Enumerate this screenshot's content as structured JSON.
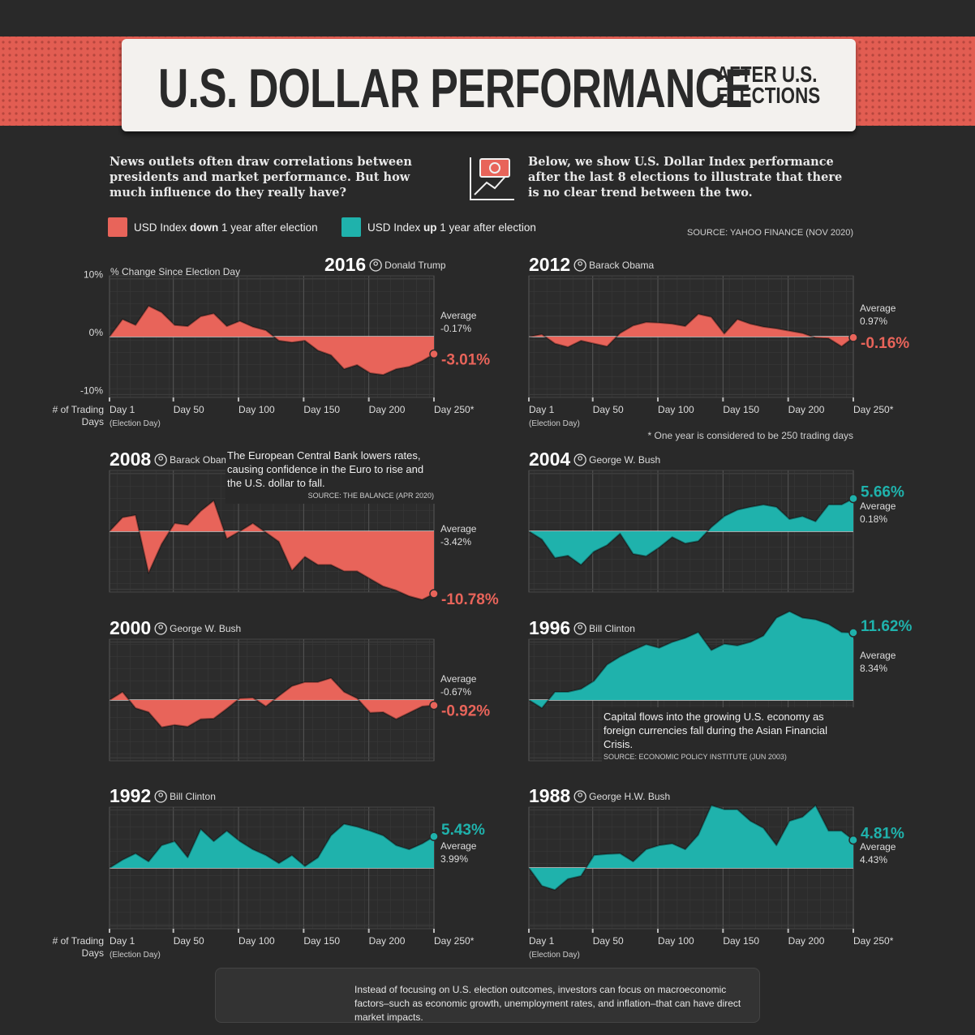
{
  "header": {
    "title": "U.S. DOLLAR PERFORMANCE",
    "subtitle_lines": [
      "AFTER U.S.",
      "ELECTIONS"
    ]
  },
  "intro": {
    "left": "News outlets often draw correlations between presidents and market performance. But how much influence do they really have?",
    "right": "Below, we show U.S. Dollar Index performance after the last 8 elections to illustrate that there is no clear trend between the two."
  },
  "legend": [
    {
      "color": "#e8645a",
      "text_before": "USD Index ",
      "emphasis": "down",
      "text_after": " 1 year after election"
    },
    {
      "color": "#1fb2ac",
      "text_before": "USD Index ",
      "emphasis": "up",
      "text_after": " 1 year after election"
    }
  ],
  "source": "SOURCE: YAHOO FINANCE (NOV 2020)",
  "footnote": "* One year is considered to be 250 trading days",
  "footer": "Instead of focusing on U.S. election outcomes, investors can focus on macroeconomic factors–such as economic growth, unemployment rates, and inflation–that can have direct market impacts.",
  "chart_data": [
    {
      "type": "area",
      "title": "2016",
      "subtitle": "Donald Trump",
      "color": "#e8645a",
      "ylabel": "% Change Since Election Day",
      "xlabel": "# of Trading Days",
      "xtick_note": "(Election Day)",
      "x": [
        1,
        11,
        21,
        31,
        41,
        51,
        61,
        71,
        81,
        91,
        101,
        111,
        121,
        131,
        141,
        151,
        161,
        171,
        181,
        191,
        201,
        211,
        221,
        231,
        241,
        250
      ],
      "values": [
        0,
        3,
        2,
        5.3,
        4.2,
        2,
        1.8,
        3.5,
        4,
        1.8,
        2.7,
        1.7,
        1.1,
        -0.7,
        -1,
        -0.7,
        -2.4,
        -3.2,
        -5.6,
        -4.9,
        -6.3,
        -6.6,
        -5.6,
        -5.2,
        -4.2,
        -3.01
      ],
      "value_labels": [
        null,
        null,
        null,
        null,
        null,
        null,
        null,
        null,
        null,
        null,
        null,
        null,
        null,
        null,
        null,
        null,
        null,
        null,
        null,
        null,
        null,
        null,
        null,
        null,
        null,
        "-3.01%"
      ],
      "average_label": "Average",
      "average": "-0.17%",
      "xlim": [
        1,
        250
      ],
      "ylim": [
        -10.5,
        10.5
      ],
      "xticks": [
        {
          "value": 1,
          "label": "Day 1"
        },
        {
          "value": 50,
          "label": "Day 50"
        },
        {
          "value": 100,
          "label": "Day 100"
        },
        {
          "value": 150,
          "label": "Day 150"
        },
        {
          "value": 200,
          "label": "Day 200"
        },
        {
          "value": 250,
          "label": "Day 250*"
        }
      ],
      "yticks": [
        {
          "value": 10,
          "label": "10%"
        },
        {
          "value": 0,
          "label": "0%"
        },
        {
          "value": -10,
          "label": "-10%"
        }
      ],
      "grid": true
    },
    {
      "type": "area",
      "title": "2012",
      "subtitle": "Barack Obama",
      "color": "#e8645a",
      "xtick_note": "(Election Day)",
      "x": [
        1,
        11,
        21,
        31,
        41,
        51,
        61,
        71,
        81,
        91,
        101,
        111,
        121,
        131,
        141,
        151,
        161,
        171,
        181,
        191,
        201,
        211,
        221,
        231,
        241,
        250
      ],
      "values": [
        0,
        0.4,
        -1.2,
        -1.8,
        -0.7,
        -1.2,
        -1.7,
        0.6,
        1.9,
        2.5,
        2.4,
        2.2,
        1.8,
        3.9,
        3.4,
        0.5,
        3,
        2.2,
        1.7,
        1.4,
        1.0,
        0.6,
        -0.2,
        -0.3,
        -1.7,
        -0.16
      ],
      "value_labels": [
        null,
        null,
        null,
        null,
        null,
        null,
        null,
        null,
        null,
        null,
        null,
        null,
        null,
        null,
        null,
        null,
        null,
        null,
        null,
        null,
        null,
        null,
        null,
        null,
        null,
        "-0.16%"
      ],
      "average_label": "Average",
      "average": "0.97%",
      "xlim": [
        1,
        250
      ],
      "ylim": [
        -10.5,
        10.5
      ],
      "xticks": [
        {
          "value": 1,
          "label": "Day 1"
        },
        {
          "value": 50,
          "label": "Day 50"
        },
        {
          "value": 100,
          "label": "Day 100"
        },
        {
          "value": 150,
          "label": "Day 150"
        },
        {
          "value": 200,
          "label": "Day 200"
        },
        {
          "value": 250,
          "label": "Day 250*"
        }
      ],
      "yticks": [
        -10,
        0,
        10
      ],
      "grid": true
    },
    {
      "type": "area",
      "title": "2008",
      "subtitle": "Barack Obama",
      "color": "#e8645a",
      "annotation": "The European Central Bank lowers rates, causing confidence in the Euro to rise and the U.S. dollar to fall.",
      "annotation_source": "SOURCE: THE BALANCE (APR 2020)",
      "x": [
        1,
        11,
        21,
        31,
        41,
        51,
        61,
        71,
        81,
        91,
        101,
        111,
        121,
        131,
        141,
        151,
        161,
        171,
        181,
        191,
        201,
        211,
        221,
        231,
        241,
        250
      ],
      "values": [
        0,
        2.4,
        2.8,
        -7.2,
        -2.2,
        1.4,
        1.1,
        3.5,
        5.3,
        -1.3,
        0,
        1.4,
        -0.2,
        -1.8,
        -6.8,
        -4.4,
        -5.8,
        -5.8,
        -6.9,
        -6.9,
        -8.2,
        -9.5,
        -10.2,
        -11.2,
        -11.8,
        -10.78
      ],
      "value_labels": [
        null,
        null,
        null,
        null,
        null,
        null,
        null,
        null,
        null,
        null,
        null,
        null,
        null,
        null,
        null,
        null,
        null,
        null,
        null,
        null,
        null,
        null,
        null,
        null,
        null,
        "-10.78%"
      ],
      "average_label": "Average",
      "average": "-3.42%",
      "xlim": [
        1,
        250
      ],
      "ylim": [
        -10.5,
        10.5
      ],
      "xticks": [
        1,
        50,
        100,
        150,
        200,
        250
      ],
      "yticks": [
        -10,
        0,
        10
      ],
      "grid": true
    },
    {
      "type": "area",
      "title": "2004",
      "subtitle": "George W. Bush",
      "color": "#1fb2ac",
      "x": [
        1,
        11,
        21,
        31,
        41,
        51,
        61,
        71,
        81,
        91,
        101,
        111,
        121,
        131,
        141,
        151,
        161,
        171,
        181,
        191,
        201,
        211,
        221,
        231,
        241,
        250
      ],
      "values": [
        0,
        -1.4,
        -4.6,
        -4.2,
        -5.8,
        -3.5,
        -2.4,
        -0.4,
        -3.9,
        -4.3,
        -2.8,
        -1,
        -2.1,
        -1.7,
        0.7,
        2.6,
        3.7,
        4.2,
        4.6,
        4.2,
        2.1,
        2.6,
        1.7,
        4.6,
        4.6,
        5.66
      ],
      "value_labels": [
        null,
        null,
        null,
        null,
        null,
        null,
        null,
        null,
        null,
        null,
        null,
        null,
        null,
        null,
        null,
        null,
        null,
        null,
        null,
        null,
        null,
        null,
        null,
        null,
        null,
        "5.66%"
      ],
      "average_label": "Average",
      "average": "0.18%",
      "xlim": [
        1,
        250
      ],
      "ylim": [
        -10.5,
        10.5
      ],
      "xticks": [
        1,
        50,
        100,
        150,
        200,
        250
      ],
      "yticks": [
        -10,
        0,
        10
      ],
      "grid": true
    },
    {
      "type": "area",
      "title": "2000",
      "subtitle": "George W. Bush",
      "color": "#e8645a",
      "x": [
        1,
        11,
        21,
        31,
        41,
        51,
        61,
        71,
        81,
        91,
        101,
        111,
        121,
        131,
        141,
        151,
        161,
        171,
        181,
        191,
        201,
        211,
        221,
        231,
        241,
        250
      ],
      "values": [
        0,
        1.4,
        -1.4,
        -2.1,
        -4.7,
        -4.3,
        -4.6,
        -3.3,
        -3.2,
        -1.5,
        0.3,
        0.4,
        -1.1,
        0.7,
        2.4,
        3.1,
        3.1,
        3.8,
        1.4,
        0.3,
        -2.2,
        -2.1,
        -3.3,
        -2.2,
        -1.1,
        -0.92
      ],
      "value_labels": [
        null,
        null,
        null,
        null,
        null,
        null,
        null,
        null,
        null,
        null,
        null,
        null,
        null,
        null,
        null,
        null,
        null,
        null,
        null,
        null,
        null,
        null,
        null,
        null,
        null,
        "-0.92%"
      ],
      "average_label": "Average",
      "average": "-0.67%",
      "xlim": [
        1,
        250
      ],
      "ylim": [
        -10.5,
        10.5
      ],
      "xticks": [
        1,
        50,
        100,
        150,
        200,
        250
      ],
      "yticks": [
        -10,
        0,
        10
      ],
      "grid": true
    },
    {
      "type": "area",
      "title": "1996",
      "subtitle": "Bill Clinton",
      "color": "#1fb2ac",
      "annotation": "Capital flows into the growing U.S. economy as foreign currencies fall during the Asian Financial Crisis.",
      "annotation_source": "SOURCE: ECONOMIC POLICY INSTITUTE (JUN 2003)",
      "x": [
        1,
        11,
        21,
        31,
        41,
        51,
        61,
        71,
        81,
        91,
        101,
        111,
        121,
        131,
        141,
        151,
        161,
        171,
        181,
        191,
        201,
        211,
        221,
        231,
        241,
        250
      ],
      "values": [
        0,
        -1.4,
        1.4,
        1.4,
        1.9,
        3.3,
        6.1,
        7.5,
        8.6,
        9.6,
        9,
        10,
        10.7,
        11.7,
        8.6,
        9.7,
        9.4,
        10,
        11.1,
        14.2,
        15.3,
        14.2,
        13.9,
        13.1,
        11.7,
        11.62
      ],
      "value_labels": [
        null,
        null,
        null,
        null,
        null,
        null,
        null,
        null,
        null,
        null,
        null,
        null,
        null,
        null,
        null,
        null,
        null,
        null,
        null,
        null,
        null,
        null,
        null,
        null,
        null,
        "11.62%"
      ],
      "average_label": "Average",
      "average": "8.34%",
      "xlim": [
        1,
        250
      ],
      "ylim": [
        -10.5,
        10.5
      ],
      "xticks": [
        1,
        50,
        100,
        150,
        200,
        250
      ],
      "yticks": [
        -10,
        0,
        10
      ],
      "grid": true
    },
    {
      "type": "area",
      "title": "1992",
      "subtitle": "Bill Clinton",
      "color": "#1fb2ac",
      "xlabel": "# of Trading Days",
      "xtick_note": "(Election Day)",
      "x": [
        1,
        11,
        21,
        31,
        41,
        51,
        61,
        71,
        81,
        91,
        101,
        111,
        121,
        131,
        141,
        151,
        161,
        171,
        181,
        191,
        201,
        211,
        221,
        231,
        241,
        250
      ],
      "values": [
        0,
        1.4,
        2.5,
        1.1,
        3.9,
        4.6,
        1.8,
        6.7,
        4.6,
        6.4,
        4.6,
        3.2,
        2.2,
        0.8,
        2.2,
        0.3,
        1.8,
        5.6,
        7.6,
        7.1,
        6.4,
        5.6,
        3.9,
        3.2,
        4.2,
        5.43
      ],
      "value_labels": [
        null,
        null,
        null,
        null,
        null,
        null,
        null,
        null,
        null,
        null,
        null,
        null,
        null,
        null,
        null,
        null,
        null,
        null,
        null,
        null,
        null,
        null,
        null,
        null,
        null,
        "5.43%"
      ],
      "average_label": "Average",
      "average": "3.99%",
      "xlim": [
        1,
        250
      ],
      "ylim": [
        -10.5,
        10.5
      ],
      "xticks": [
        {
          "value": 1,
          "label": "Day 1"
        },
        {
          "value": 50,
          "label": "Day 50"
        },
        {
          "value": 100,
          "label": "Day 100"
        },
        {
          "value": 150,
          "label": "Day 150"
        },
        {
          "value": 200,
          "label": "Day 200"
        },
        {
          "value": 250,
          "label": "Day 250*"
        }
      ],
      "yticks": [
        -10,
        0,
        10
      ],
      "grid": true
    },
    {
      "type": "area",
      "title": "1988",
      "subtitle": "George H.W. Bush",
      "color": "#1fb2ac",
      "xtick_note": "(Election Day)",
      "x": [
        1,
        11,
        21,
        31,
        41,
        51,
        61,
        71,
        81,
        91,
        101,
        111,
        121,
        131,
        141,
        151,
        161,
        171,
        181,
        191,
        201,
        211,
        221,
        231,
        241,
        250
      ],
      "values": [
        0,
        -3.1,
        -3.8,
        -1.9,
        -1.4,
        2.2,
        2.4,
        2.5,
        1.1,
        3.2,
        3.9,
        4.2,
        3.2,
        5.7,
        10.8,
        10.1,
        10.1,
        8.1,
        6.9,
        3.9,
        8.1,
        8.8,
        10.8,
        6.4,
        6.4,
        4.81
      ],
      "value_labels": [
        null,
        null,
        null,
        null,
        null,
        null,
        null,
        null,
        null,
        null,
        null,
        null,
        null,
        null,
        null,
        null,
        null,
        null,
        null,
        null,
        null,
        null,
        null,
        null,
        null,
        "4.81%"
      ],
      "average_label": "Average",
      "average": "4.43%",
      "xlim": [
        1,
        250
      ],
      "ylim": [
        -10.5,
        10.5
      ],
      "xticks": [
        {
          "value": 1,
          "label": "Day 1"
        },
        {
          "value": 50,
          "label": "Day 50"
        },
        {
          "value": 100,
          "label": "Day 100"
        },
        {
          "value": 150,
          "label": "Day 150"
        },
        {
          "value": 200,
          "label": "Day 200"
        },
        {
          "value": 250,
          "label": "Day 250*"
        }
      ],
      "yticks": [
        -10,
        0,
        10
      ],
      "grid": true
    }
  ]
}
